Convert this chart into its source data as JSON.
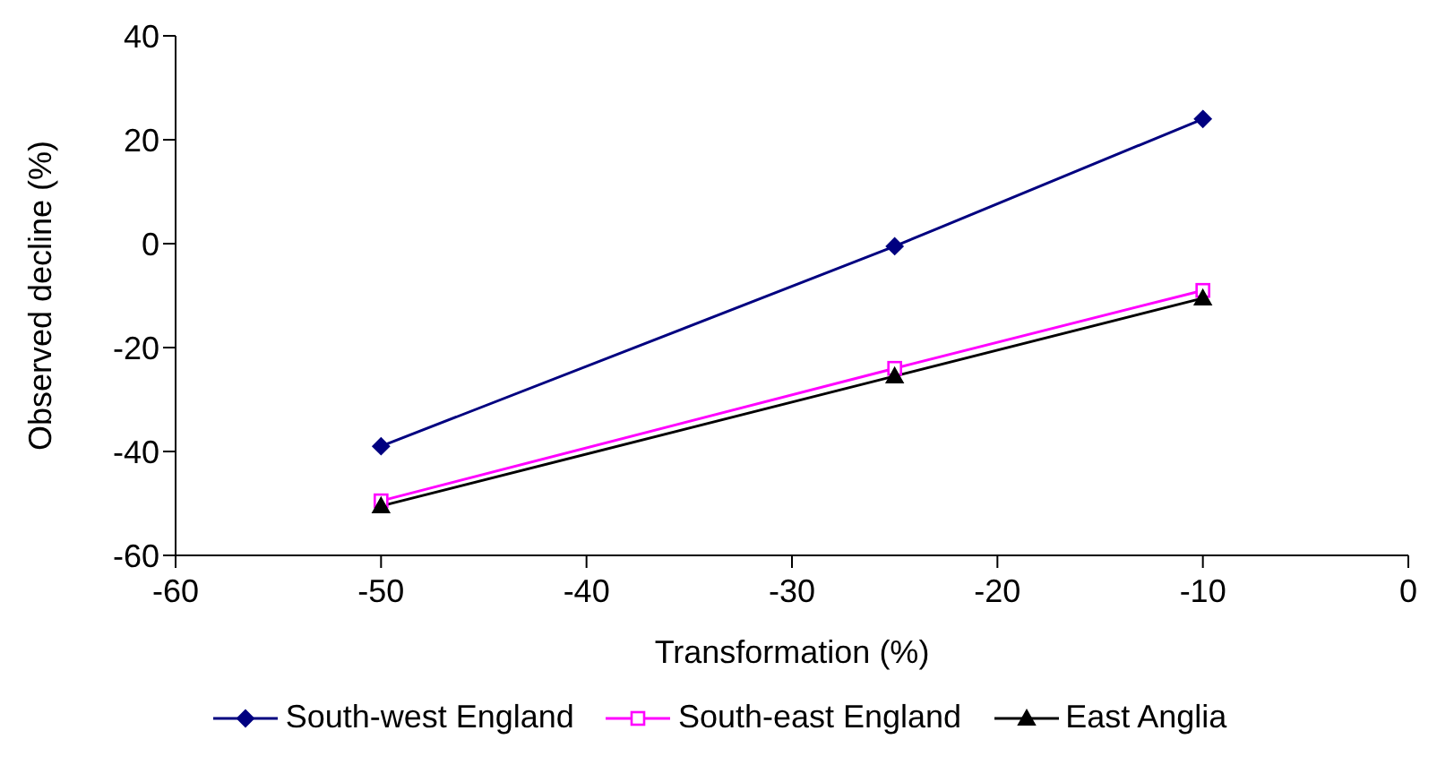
{
  "chart_data": {
    "type": "line",
    "xlabel": "Transformation (%)",
    "ylabel": "Observed decline (%)",
    "x": [
      -50,
      -25,
      -10
    ],
    "xlim": [
      -60,
      0
    ],
    "xticks": [
      -60,
      -50,
      -40,
      -30,
      -20,
      -10,
      0
    ],
    "ylim": [
      -60,
      40
    ],
    "yticks": [
      -60,
      -40,
      -20,
      0,
      20,
      40
    ],
    "grid": false,
    "legend": "bottom",
    "series": [
      {
        "name": "South-west England",
        "color": "#000080",
        "marker": "diamond",
        "values": [
          -39,
          -0.5,
          24
        ]
      },
      {
        "name": "South-east England",
        "color": "#ff00ff",
        "marker": "square",
        "values": [
          -49.5,
          -24,
          -9
        ]
      },
      {
        "name": "East Anglia",
        "color": "#000000",
        "marker": "triangle",
        "values": [
          -50.5,
          -25.5,
          -10.5
        ]
      }
    ]
  }
}
